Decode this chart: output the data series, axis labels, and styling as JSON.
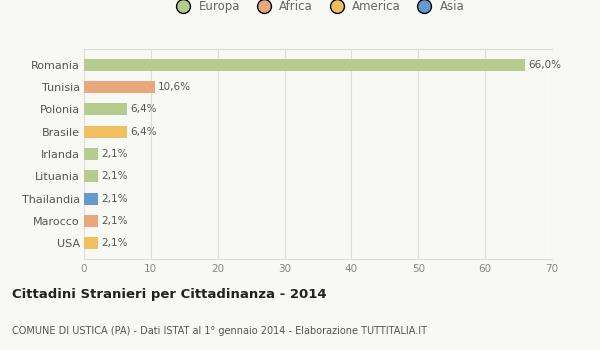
{
  "countries": [
    "Romania",
    "Tunisia",
    "Polonia",
    "Brasile",
    "Irlanda",
    "Lituania",
    "Thailandia",
    "Marocco",
    "USA"
  ],
  "values": [
    66.0,
    10.6,
    6.4,
    6.4,
    2.1,
    2.1,
    2.1,
    2.1,
    2.1
  ],
  "labels": [
    "66,0%",
    "10,6%",
    "6,4%",
    "6,4%",
    "2,1%",
    "2,1%",
    "2,1%",
    "2,1%",
    "2,1%"
  ],
  "colors": [
    "#b5cc8e",
    "#e8a87c",
    "#b5cc8e",
    "#f0c060",
    "#b5cc8e",
    "#b5cc8e",
    "#6699cc",
    "#e8a87c",
    "#f0c060"
  ],
  "legend_labels": [
    "Europa",
    "Africa",
    "America",
    "Asia"
  ],
  "legend_colors": [
    "#b5cc8e",
    "#e8a87c",
    "#f0c060",
    "#6699cc"
  ],
  "title": "Cittadini Stranieri per Cittadinanza - 2014",
  "subtitle": "COMUNE DI USTICA (PA) - Dati ISTAT al 1° gennaio 2014 - Elaborazione TUTTITALIA.IT",
  "xlim": [
    0,
    70
  ],
  "xticks": [
    0,
    10,
    20,
    30,
    40,
    50,
    60,
    70
  ],
  "background_color": "#f8f8f5",
  "grid_color": "#dddddd",
  "bar_height": 0.55,
  "label_fontsize": 7.5,
  "ytick_fontsize": 8,
  "xtick_fontsize": 7.5,
  "legend_fontsize": 8.5,
  "title_fontsize": 9.5,
  "subtitle_fontsize": 7
}
